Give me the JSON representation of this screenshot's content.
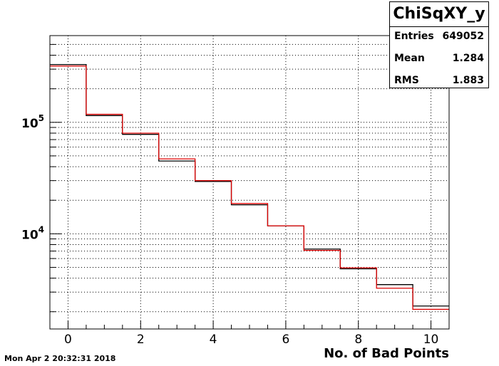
{
  "stats": {
    "title": "ChiSqXY_y",
    "rows": [
      {
        "key": "Entries",
        "value": "649052"
      },
      {
        "key": "Mean",
        "value": "1.284"
      },
      {
        "key": "RMS",
        "value": "1.883"
      }
    ]
  },
  "footer": {
    "timestamp": "Mon Apr  2 20:32:31 2018"
  },
  "chart_data": {
    "type": "step",
    "xlabel": "No. of Bad Points",
    "ylabel": "",
    "xlim": [
      -0.5,
      10.5
    ],
    "ylim": [
      1400,
      600000
    ],
    "yscale": "log",
    "grid": true,
    "x_ticks": [
      "0",
      "2",
      "4",
      "6",
      "8",
      "10"
    ],
    "y_ticks": [
      {
        "base": "10",
        "exp": "4",
        "value": 10000
      },
      {
        "base": "10",
        "exp": "5",
        "value": 100000
      }
    ],
    "bin_edges": [
      -0.5,
      0.5,
      1.5,
      2.5,
      3.5,
      4.5,
      5.5,
      6.5,
      7.5,
      8.5,
      9.5,
      10.5
    ],
    "series": [
      {
        "color": "#000000",
        "values": [
          330000,
          115000,
          78000,
          45000,
          29500,
          18200,
          11800,
          7300,
          4850,
          3500,
          2250
        ]
      },
      {
        "color": "#dd0000",
        "values": [
          320000,
          118000,
          80000,
          47000,
          30000,
          18700,
          11800,
          7100,
          4950,
          3250,
          2100
        ]
      }
    ]
  }
}
